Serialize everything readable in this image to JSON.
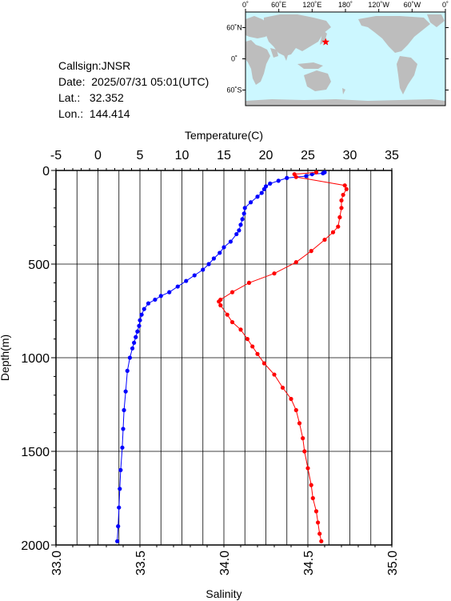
{
  "info": {
    "callsign": "Callsign:JNSR",
    "date": "Date:  2025/07/31 05:01(UTC)",
    "lat": "Lat.:   32.352",
    "lon": "Lon.:  144.414"
  },
  "map": {
    "lon_ticks": [
      "0˚",
      "60˚E",
      "120˚E",
      "180˚",
      "120˚W",
      "60˚W",
      "0˚"
    ],
    "lat_ticks": [
      "60˚N",
      "0˚",
      "60˚S"
    ],
    "ocean_color": "#ccf7ff",
    "land_color": "#bdbdbd",
    "marker": {
      "lon": 144.414,
      "lat": 32.352,
      "color": "#ff0000",
      "shape": "star"
    }
  },
  "chart_data": {
    "type": "line",
    "xlabel_top": "Temperature(C)",
    "xlabel_bottom": "Salinity",
    "ylabel": "Depth(m)",
    "temp_range": [
      -5,
      35
    ],
    "temp_ticks": [
      "-5",
      "0",
      "5",
      "10",
      "15",
      "20",
      "25",
      "30",
      "35"
    ],
    "sal_range": [
      33.0,
      35.0
    ],
    "sal_ticks": [
      "33.0",
      "33.5",
      "34.0",
      "34.5",
      "35.0"
    ],
    "depth_range": [
      0,
      2000
    ],
    "depth_ticks": [
      "0",
      "500",
      "1000",
      "1500",
      "2000"
    ],
    "grid": true,
    "series": [
      {
        "color": "#0000ff",
        "axis": "temperature",
        "points": [
          [
            27.0,
            10
          ],
          [
            26.8,
            15
          ],
          [
            25.5,
            20
          ],
          [
            24.8,
            30
          ],
          [
            22.5,
            40
          ],
          [
            21.5,
            55
          ],
          [
            20.5,
            70
          ],
          [
            20.0,
            85
          ],
          [
            19.8,
            100
          ],
          [
            19.5,
            120
          ],
          [
            19.0,
            140
          ],
          [
            18.2,
            170
          ],
          [
            17.5,
            200
          ],
          [
            17.4,
            230
          ],
          [
            17.2,
            260
          ],
          [
            17.0,
            290
          ],
          [
            16.8,
            320
          ],
          [
            16.5,
            340
          ],
          [
            15.8,
            380
          ],
          [
            15.0,
            410
          ],
          [
            14.5,
            440
          ],
          [
            13.8,
            470
          ],
          [
            13.2,
            500
          ],
          [
            12.5,
            530
          ],
          [
            11.5,
            560
          ],
          [
            10.5,
            590
          ],
          [
            9.5,
            620
          ],
          [
            8.5,
            650
          ],
          [
            7.5,
            670
          ],
          [
            6.8,
            690
          ],
          [
            6.0,
            710
          ],
          [
            5.5,
            740
          ],
          [
            5.2,
            770
          ],
          [
            5.0,
            800
          ],
          [
            4.9,
            830
          ],
          [
            4.7,
            860
          ],
          [
            4.5,
            890
          ],
          [
            4.3,
            920
          ],
          [
            4.1,
            950
          ],
          [
            3.8,
            1000
          ],
          [
            3.5,
            1070
          ],
          [
            3.3,
            1180
          ],
          [
            3.1,
            1280
          ],
          [
            3.0,
            1380
          ],
          [
            2.9,
            1480
          ],
          [
            2.7,
            1600
          ],
          [
            2.6,
            1700
          ],
          [
            2.5,
            1800
          ],
          [
            2.4,
            1900
          ],
          [
            2.3,
            1980
          ]
        ]
      },
      {
        "color": "#ff0000",
        "axis": "salinity",
        "points": [
          [
            34.55,
            10
          ],
          [
            34.42,
            20
          ],
          [
            34.43,
            35
          ],
          [
            34.72,
            80
          ],
          [
            34.73,
            100
          ],
          [
            34.71,
            130
          ],
          [
            34.7,
            160
          ],
          [
            34.7,
            200
          ],
          [
            34.69,
            250
          ],
          [
            34.68,
            300
          ],
          [
            34.65,
            330
          ],
          [
            34.6,
            370
          ],
          [
            34.52,
            430
          ],
          [
            34.43,
            490
          ],
          [
            34.3,
            550
          ],
          [
            34.15,
            600
          ],
          [
            34.05,
            650
          ],
          [
            33.98,
            690
          ],
          [
            33.97,
            700
          ],
          [
            33.98,
            720
          ],
          [
            34.02,
            770
          ],
          [
            34.05,
            810
          ],
          [
            34.1,
            850
          ],
          [
            34.14,
            900
          ],
          [
            34.17,
            940
          ],
          [
            34.2,
            980
          ],
          [
            34.24,
            1030
          ],
          [
            34.3,
            1090
          ],
          [
            34.35,
            1160
          ],
          [
            34.4,
            1220
          ],
          [
            34.43,
            1280
          ],
          [
            34.45,
            1350
          ],
          [
            34.47,
            1430
          ],
          [
            34.48,
            1500
          ],
          [
            34.5,
            1590
          ],
          [
            34.52,
            1680
          ],
          [
            34.53,
            1750
          ],
          [
            34.55,
            1820
          ],
          [
            34.56,
            1880
          ],
          [
            34.57,
            1940
          ],
          [
            34.58,
            1980
          ]
        ]
      }
    ]
  }
}
